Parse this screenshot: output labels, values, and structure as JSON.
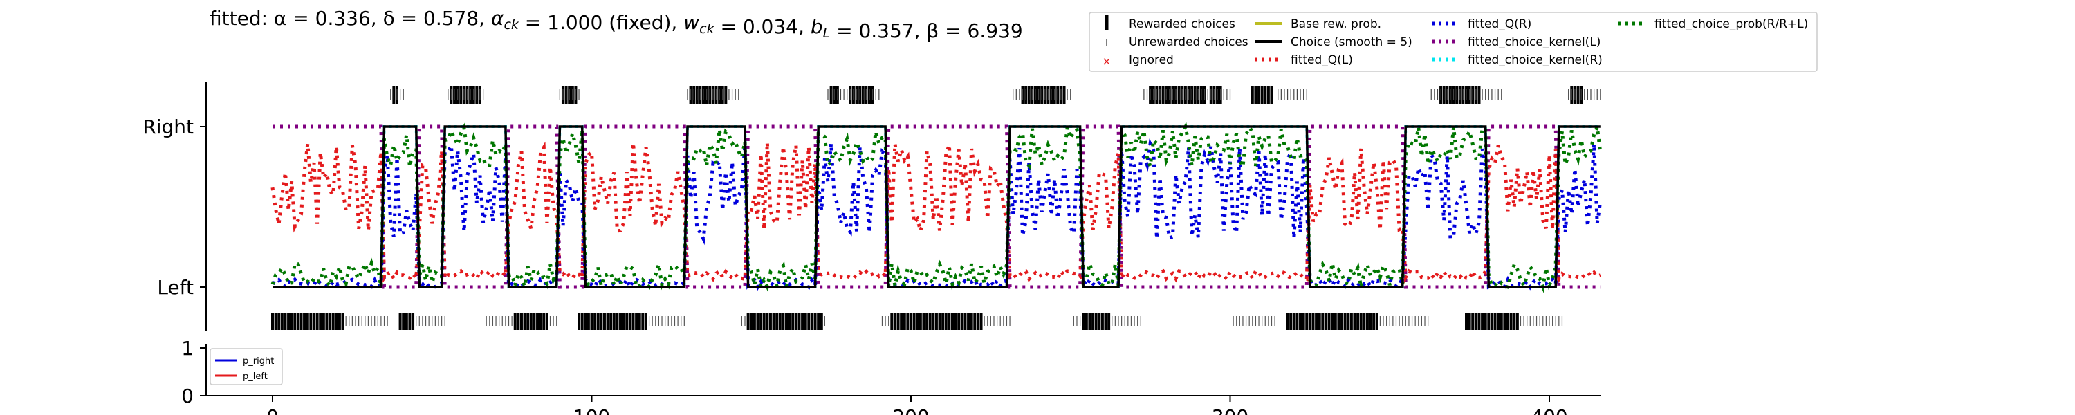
{
  "chart_data": [
    {
      "type": "line",
      "title": "fitted: α = 0.336, δ = 0.578, α_ck = 1.000 (fixed), w_ck = 0.034, b_L = 0.357, β = 6.939",
      "xlabel": "",
      "ylabel": "",
      "xlim": [
        0,
        416
      ],
      "ylim": [
        0,
        1
      ],
      "yticklabels": [
        "Left",
        "Right"
      ],
      "legend_position": "top-right",
      "legend": [
        {
          "label": "Rewarded choices",
          "color": "#000000",
          "marker": "tall-bar"
        },
        {
          "label": "Unrewarded choices",
          "color": "#555555",
          "marker": "short-bar"
        },
        {
          "label": "Ignored",
          "color": "#e41a1c",
          "marker": "x"
        },
        {
          "label": "Base rew. prob.",
          "color": "#bcbd22",
          "marker": "solid-line"
        },
        {
          "label": "Choice (smooth = 5)",
          "color": "#000000",
          "marker": "solid-line"
        },
        {
          "label": "fitted_Q(L)",
          "color": "#e41a1c",
          "marker": "dotted-line"
        },
        {
          "label": "fitted_Q(R)",
          "color": "#0000dd",
          "marker": "dotted-line"
        },
        {
          "label": "fitted_choice_kernel(L)",
          "color": "#800080",
          "marker": "dotted-line"
        },
        {
          "label": "fitted_choice_kernel(R)",
          "color": "#00e5ee",
          "marker": "dotted-line"
        },
        {
          "label": "fitted_choice_prob(R/R+L)",
          "color": "#007700",
          "marker": "dotted-line"
        }
      ],
      "right_blocks": [
        [
          37,
          41
        ],
        [
          55,
          66
        ],
        [
          90,
          96
        ],
        [
          130,
          146
        ],
        [
          174,
          190
        ],
        [
          232,
          250
        ],
        [
          273,
          300
        ],
        [
          315,
          324
        ],
        [
          363,
          385
        ],
        [
          406,
          416
        ]
      ],
      "right_rewarded_blocks": [
        [
          38,
          39
        ],
        [
          56,
          65
        ],
        [
          91,
          95
        ],
        [
          131,
          142
        ],
        [
          175,
          177
        ],
        [
          181,
          188
        ],
        [
          235,
          248
        ],
        [
          275,
          292
        ],
        [
          294,
          297
        ],
        [
          307,
          313
        ],
        [
          366,
          378
        ],
        [
          407,
          410
        ]
      ],
      "left_rewarded_blocks": [
        [
          0,
          10
        ],
        [
          10,
          22
        ],
        [
          40,
          44
        ],
        [
          76,
          86
        ],
        [
          96,
          117
        ],
        [
          149,
          172
        ],
        [
          194,
          222
        ],
        [
          254,
          262
        ],
        [
          318,
          346
        ],
        [
          374,
          390
        ]
      ],
      "left_unrewarded_span": [
        0,
        404
      ],
      "choice_smooth_right_segments": [
        [
          35,
          45
        ],
        [
          54,
          73
        ],
        [
          90,
          97
        ],
        [
          130,
          148
        ],
        [
          171,
          192
        ],
        [
          231,
          253
        ],
        [
          266,
          300
        ],
        [
          301,
          324
        ],
        [
          355,
          380
        ],
        [
          403,
          416
        ]
      ],
      "series_note": "traces approximated"
    },
    {
      "type": "line",
      "xlim": [
        0,
        416
      ],
      "ylim": [
        0,
        1
      ],
      "yticks": [
        0,
        1
      ],
      "xticks": [
        0,
        100,
        200,
        300,
        400
      ],
      "legend_position": "upper-left",
      "series": [
        {
          "name": "p_right",
          "color": "#0000dd"
        },
        {
          "name": "p_left",
          "color": "#e41a1c"
        }
      ]
    }
  ]
}
